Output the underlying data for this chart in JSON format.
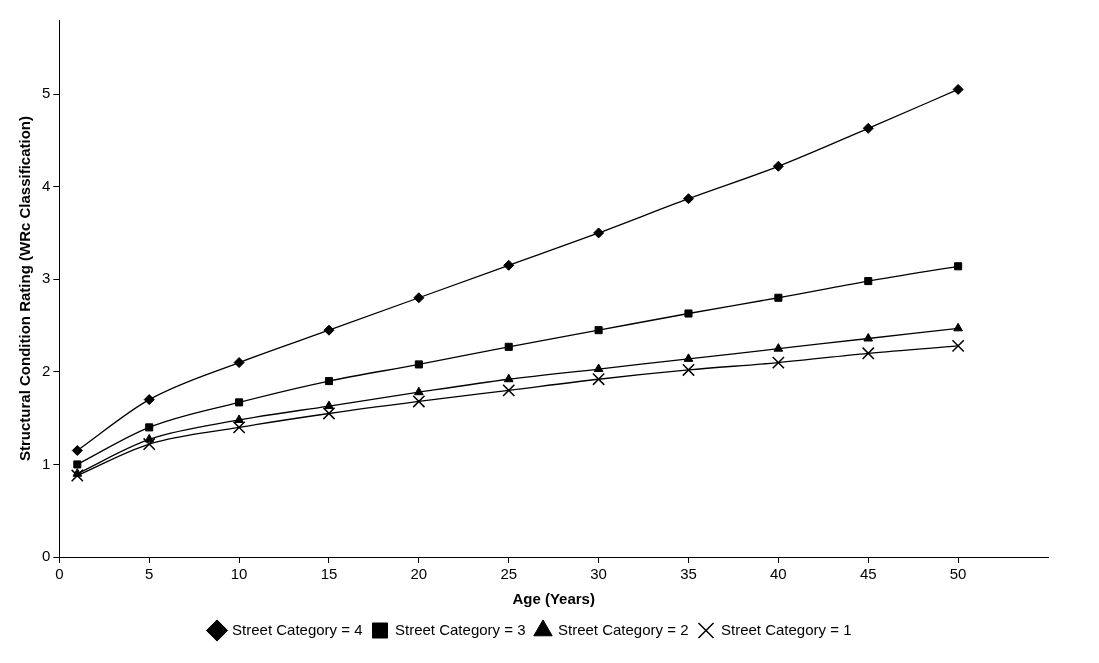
{
  "chart_data": {
    "type": "line",
    "xlabel": "Age (Years)",
    "ylabel": "Structural Condition Rating (WRc Classification)",
    "x": [
      1,
      5,
      10,
      15,
      20,
      25,
      30,
      35,
      40,
      45,
      50
    ],
    "xlim": [
      0,
      55
    ],
    "xticks": [
      0,
      5,
      10,
      15,
      20,
      25,
      30,
      35,
      40,
      45,
      50
    ],
    "ylim": [
      0,
      5.8
    ],
    "yticks": [
      0,
      1,
      2,
      3,
      4,
      5
    ],
    "grid": false,
    "legend": "bottom",
    "line_style": "solid",
    "series": [
      {
        "name": "Street Category = 4",
        "color": "#000000",
        "marker": "diamond",
        "values": [
          1.15,
          1.7,
          2.1,
          2.45,
          2.8,
          3.15,
          3.5,
          3.87,
          4.22,
          4.63,
          5.05
        ]
      },
      {
        "name": "Street Category = 3",
        "color": "#000000",
        "marker": "square",
        "values": [
          1.0,
          1.4,
          1.67,
          1.9,
          2.08,
          2.27,
          2.45,
          2.63,
          2.8,
          2.98,
          3.14
        ]
      },
      {
        "name": "Street Category = 2",
        "color": "#000000",
        "marker": "triangle",
        "values": [
          0.9,
          1.27,
          1.48,
          1.63,
          1.78,
          1.92,
          2.03,
          2.14,
          2.25,
          2.36,
          2.47
        ]
      },
      {
        "name": "Street Category = 1",
        "color": "#000000",
        "marker": "cross",
        "values": [
          0.88,
          1.22,
          1.4,
          1.55,
          1.68,
          1.8,
          1.92,
          2.02,
          2.1,
          2.2,
          2.28
        ]
      }
    ]
  }
}
